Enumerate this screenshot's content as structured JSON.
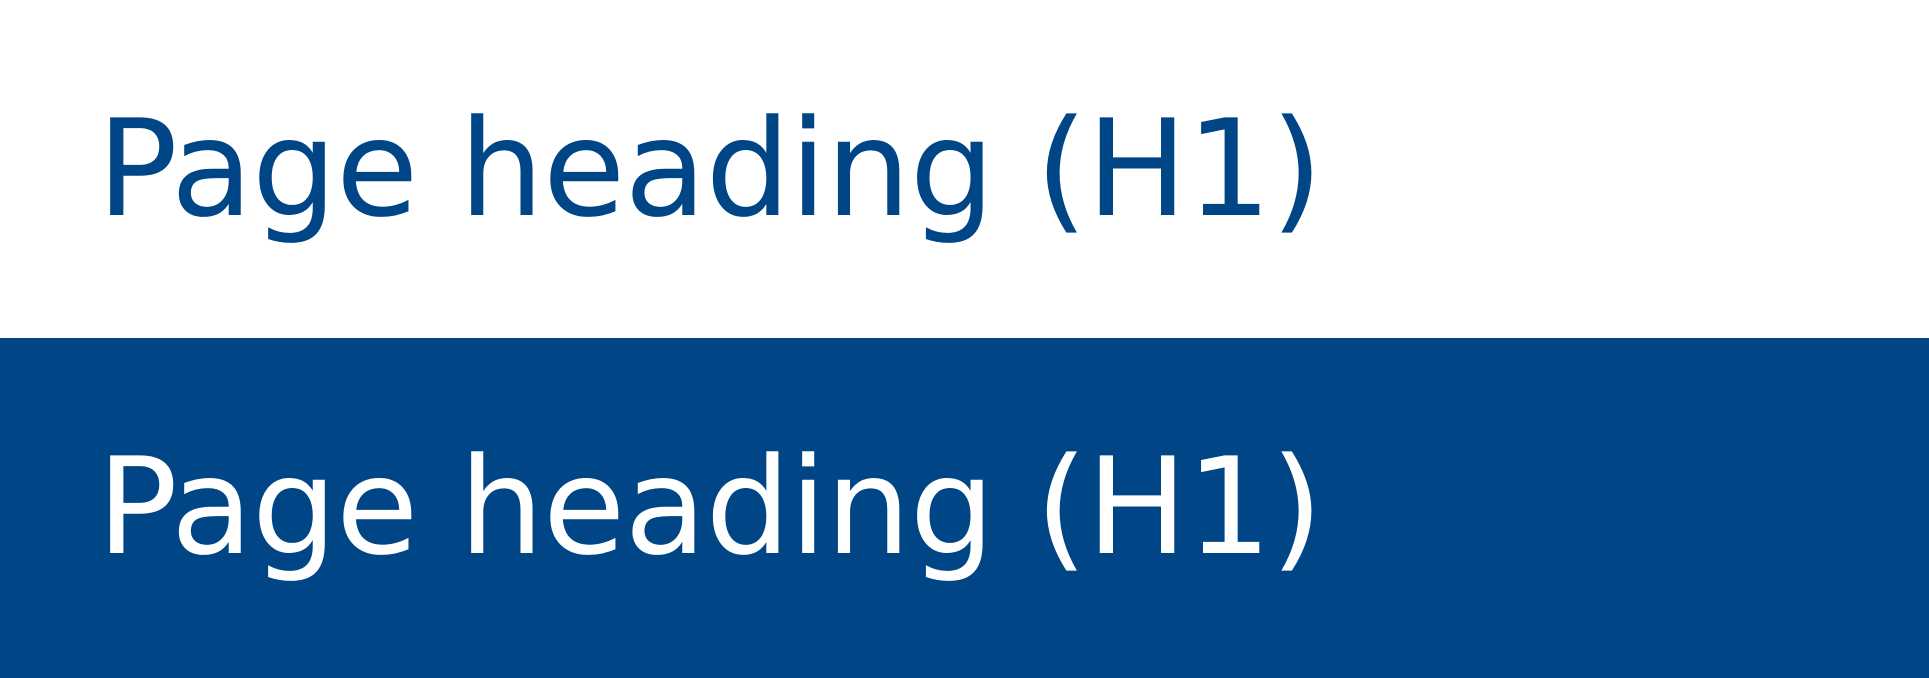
{
  "light_panel": {
    "heading": "Page heading (H1)",
    "background_color": "#ffffff",
    "text_color": "#004687"
  },
  "dark_panel": {
    "heading": "Page heading (H1)",
    "background_color": "#004687",
    "text_color": "#ffffff"
  }
}
